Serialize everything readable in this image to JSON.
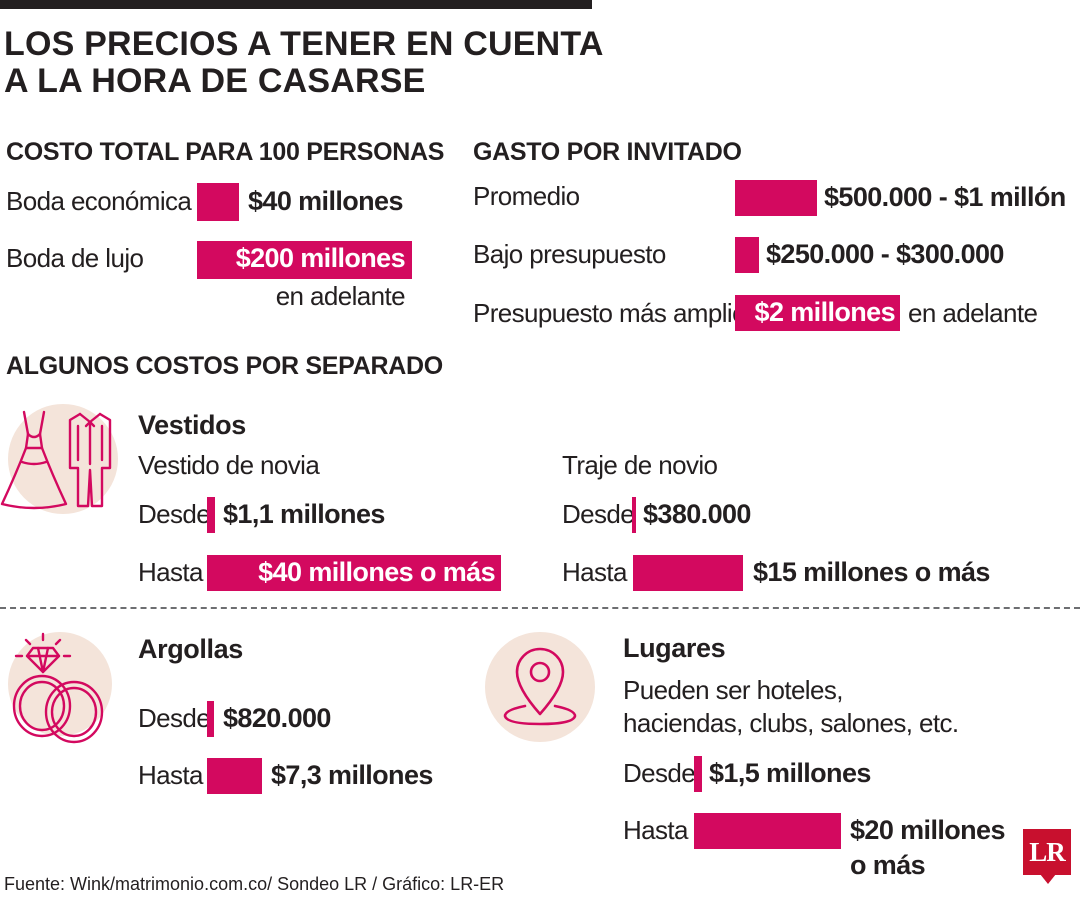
{
  "title_line1": "LOS PRECIOS A TENER EN CUENTA",
  "title_line2": "A LA HORA DE CASARSE",
  "total": {
    "heading": "COSTO TOTAL PARA 100 PERSONAS",
    "rows": [
      {
        "label": "Boda económica",
        "value": "$40 millones"
      },
      {
        "label": "Boda de lujo",
        "value": "$200 millones",
        "note": "en adelante"
      }
    ]
  },
  "invitado": {
    "heading": "GASTO POR INVITADO",
    "rows": [
      {
        "label": "Promedio",
        "value": "$500.000 - $1 millón"
      },
      {
        "label": "Bajo presupuesto",
        "value": "$250.000 - $300.000"
      },
      {
        "label": "Presupuesto más amplio",
        "value": "$2 millones",
        "note": "en adelante"
      }
    ]
  },
  "separado_heading": "ALGUNOS COSTOS POR SEPARADO",
  "vestidos": {
    "heading": "Vestidos",
    "novia": {
      "label": "Vestido de novia",
      "desde_label": "Desde",
      "desde_value": "$1,1 millones",
      "hasta_label": "Hasta",
      "hasta_value": "$40 millones o más"
    },
    "novio": {
      "label": "Traje de novio",
      "desde_label": "Desde",
      "desde_value": "$380.000",
      "hasta_label": "Hasta",
      "hasta_value": "$15 millones o más"
    }
  },
  "argollas": {
    "heading": "Argollas",
    "desde_label": "Desde",
    "desde_value": "$820.000",
    "hasta_label": "Hasta",
    "hasta_value": "$7,3 millones"
  },
  "lugares": {
    "heading": "Lugares",
    "desc_line1": "Pueden ser hoteles,",
    "desc_line2": "haciendas, clubs, salones, etc.",
    "desde_label": "Desde",
    "desde_value": "$1,5 millones",
    "hasta_label": "Hasta",
    "hasta_value_line1": "$20 millones",
    "hasta_value_line2": "o más"
  },
  "source": "Fuente: Wink/matrimonio.com.co/ Sondeo LR / Gráfico: LR-ER",
  "logo_text": "LR",
  "colors": {
    "accent": "#d3095f",
    "text": "#231f20",
    "icon_bg": "#f4e4da",
    "logo": "#c8102e"
  },
  "icons": [
    "wedding-dress-icon",
    "tuxedo-icon",
    "rings-icon",
    "location-pin-icon"
  ],
  "chart_data": {
    "type": "bar",
    "note": "Bars represent approximate cost ranges in Colombian pesos (COP)",
    "groups": [
      {
        "name": "COSTO TOTAL PARA 100 PERSONAS",
        "categories": [
          "Boda económica",
          "Boda de lujo"
        ],
        "values": [
          40000000,
          200000000
        ]
      },
      {
        "name": "GASTO POR INVITADO",
        "categories": [
          "Promedio",
          "Bajo presupuesto",
          "Presupuesto más amplio"
        ],
        "values": [
          1000000,
          300000,
          2000000
        ]
      },
      {
        "name": "Vestido de novia",
        "categories": [
          "Desde",
          "Hasta"
        ],
        "values": [
          1100000,
          40000000
        ]
      },
      {
        "name": "Traje de novio",
        "categories": [
          "Desde",
          "Hasta"
        ],
        "values": [
          380000,
          15000000
        ]
      },
      {
        "name": "Argollas",
        "categories": [
          "Desde",
          "Hasta"
        ],
        "values": [
          820000,
          7300000
        ]
      },
      {
        "name": "Lugares",
        "categories": [
          "Desde",
          "Hasta"
        ],
        "values": [
          1500000,
          20000000
        ]
      }
    ]
  }
}
